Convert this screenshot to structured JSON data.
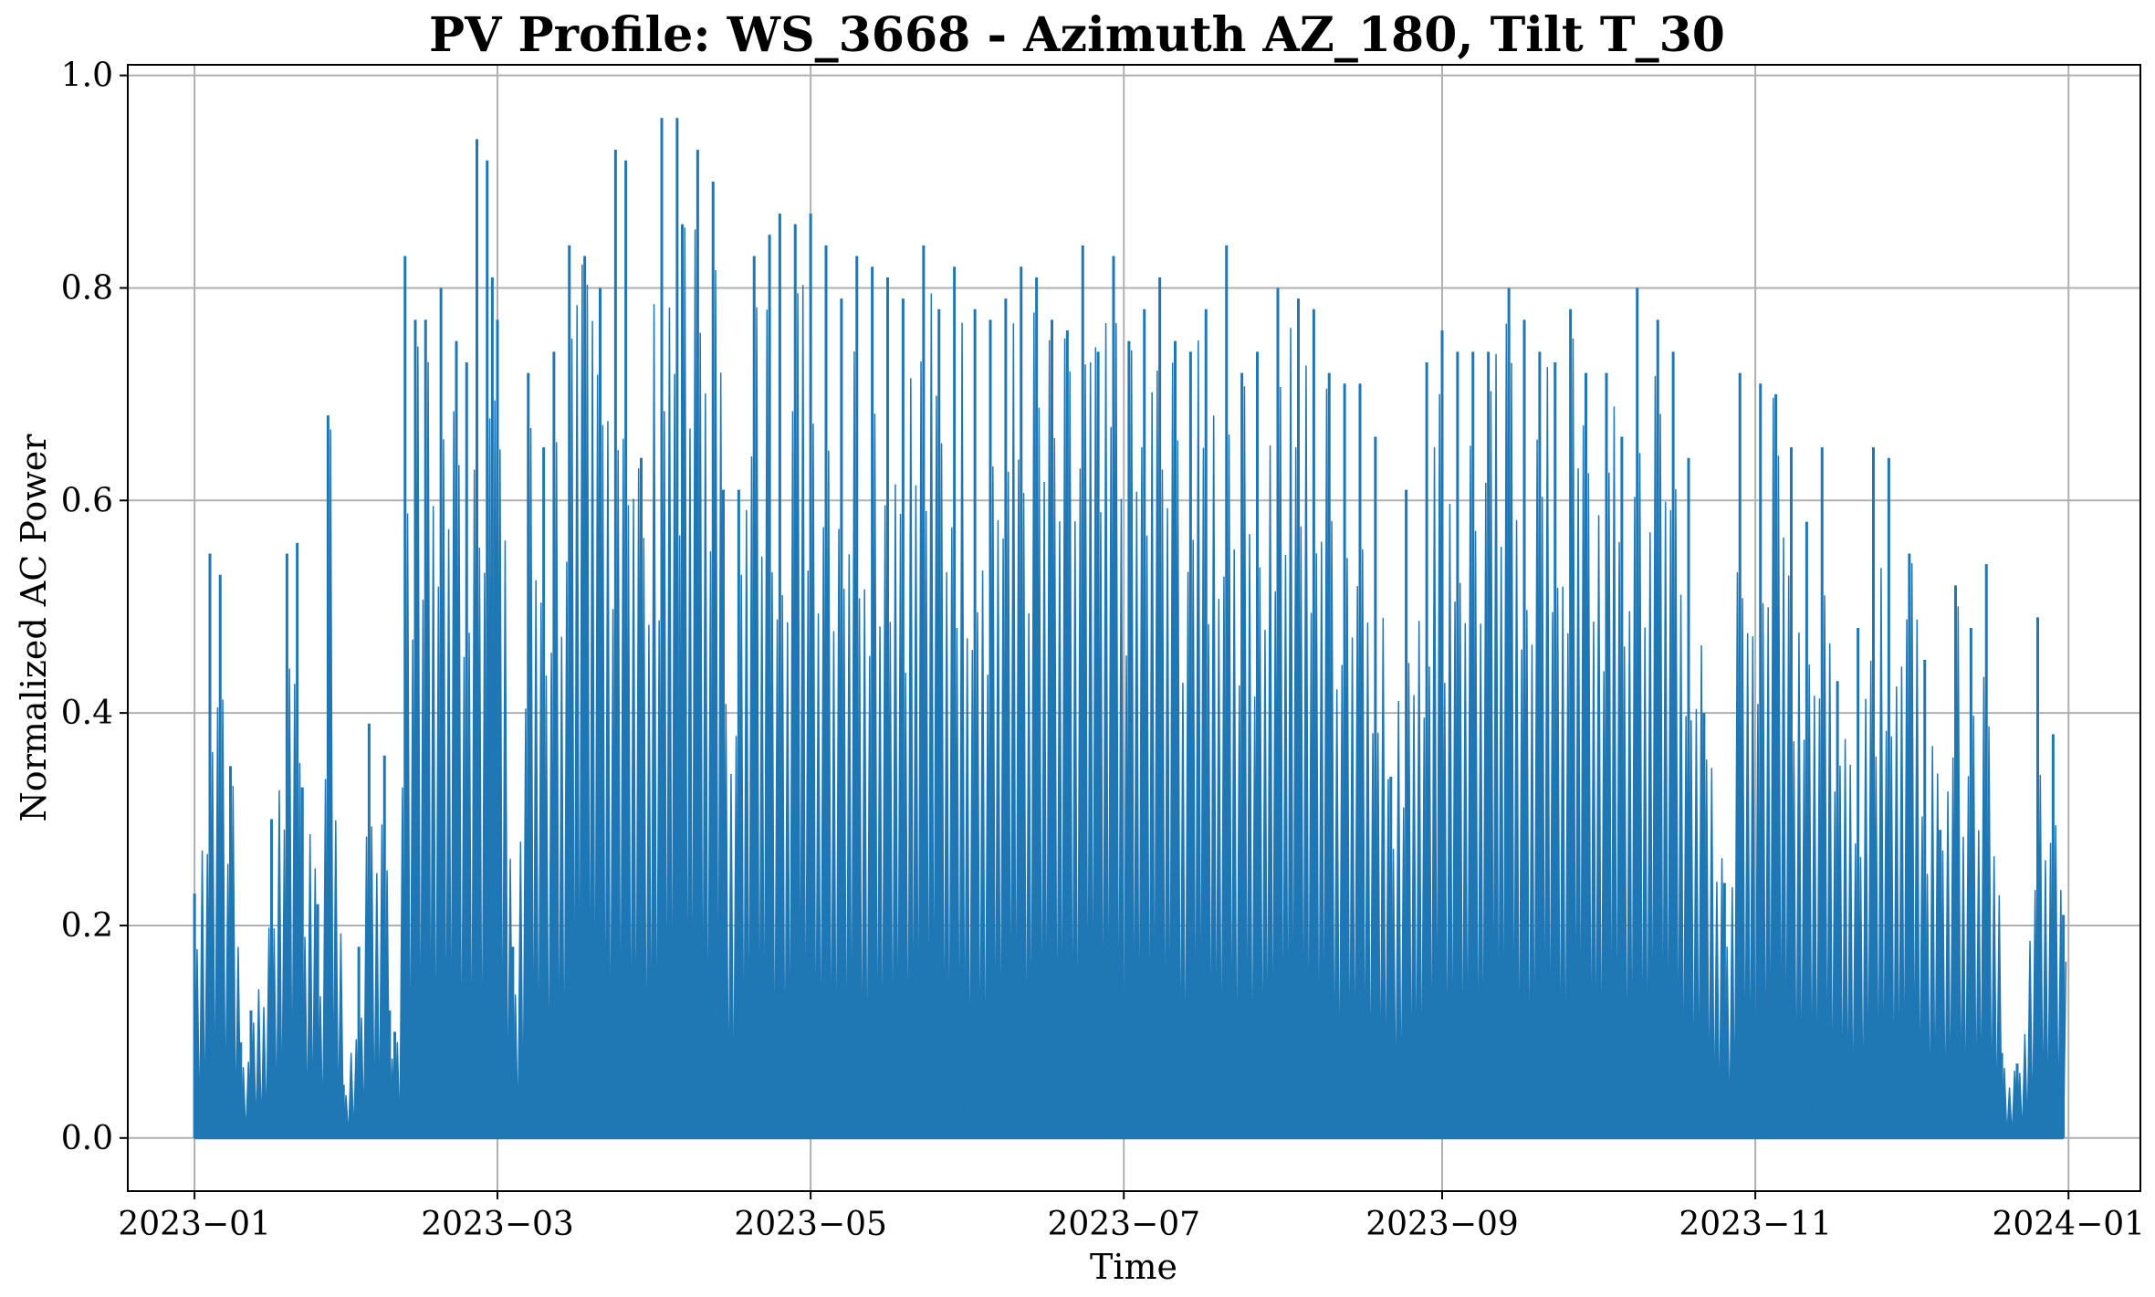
{
  "chart_data": {
    "type": "line",
    "title": "PV Profile: WS_3668 - Azimuth AZ_180, Tilt T_30",
    "xlabel": "Time",
    "ylabel": "Normalized AC Power",
    "x_range": [
      "2022-12-19",
      "2024-01-15"
    ],
    "ylim": [
      -0.05,
      1.01
    ],
    "x_ticks": [
      "2023-01",
      "2023-03",
      "2023-05",
      "2023-07",
      "2023-09",
      "2023-11",
      "2024-01"
    ],
    "y_ticks": [
      "0.0",
      "0.2",
      "0.4",
      "0.6",
      "0.8",
      "1.0"
    ],
    "y_tick_values": [
      0.0,
      0.2,
      0.4,
      0.6,
      0.8,
      1.0
    ],
    "grid": true,
    "legend": "none",
    "series": [
      {
        "color": "#1f77b4",
        "resolution": "hourly, daytime peaks shown by day",
        "daily_peak_dates": [
          "2023-01-01",
          "2023-01-04",
          "2023-01-06",
          "2023-01-08",
          "2023-01-10",
          "2023-01-12",
          "2023-01-16",
          "2023-01-19",
          "2023-01-21",
          "2023-01-22",
          "2023-01-25",
          "2023-01-27",
          "2023-01-30",
          "2023-02-02",
          "2023-02-04",
          "2023-02-07",
          "2023-02-08",
          "2023-02-09",
          "2023-02-11",
          "2023-02-13",
          "2023-02-15",
          "2023-02-18",
          "2023-02-21",
          "2023-02-23",
          "2023-02-25",
          "2023-02-27",
          "2023-02-28",
          "2023-03-01",
          "2023-03-04",
          "2023-03-07",
          "2023-03-10",
          "2023-03-12",
          "2023-03-15",
          "2023-03-18",
          "2023-03-21",
          "2023-03-24",
          "2023-03-26",
          "2023-03-29",
          "2023-04-02",
          "2023-04-05",
          "2023-04-06",
          "2023-04-09",
          "2023-04-12",
          "2023-04-14",
          "2023-04-17",
          "2023-04-20",
          "2023-04-23",
          "2023-04-25",
          "2023-04-28",
          "2023-05-01",
          "2023-05-04",
          "2023-05-07",
          "2023-05-10",
          "2023-05-13",
          "2023-05-16",
          "2023-05-19",
          "2023-05-23",
          "2023-05-26",
          "2023-05-29",
          "2023-06-02",
          "2023-06-05",
          "2023-06-08",
          "2023-06-11",
          "2023-06-14",
          "2023-06-17",
          "2023-06-20",
          "2023-06-23",
          "2023-06-26",
          "2023-06-29",
          "2023-07-02",
          "2023-07-05",
          "2023-07-08",
          "2023-07-11",
          "2023-07-14",
          "2023-07-17",
          "2023-07-21",
          "2023-07-24",
          "2023-07-27",
          "2023-07-31",
          "2023-08-04",
          "2023-08-07",
          "2023-08-10",
          "2023-08-13",
          "2023-08-16",
          "2023-08-19",
          "2023-08-22",
          "2023-08-25",
          "2023-08-29",
          "2023-09-01",
          "2023-09-04",
          "2023-09-07",
          "2023-09-10",
          "2023-09-14",
          "2023-09-17",
          "2023-09-20",
          "2023-09-23",
          "2023-09-26",
          "2023-09-29",
          "2023-10-03",
          "2023-10-06",
          "2023-10-09",
          "2023-10-13",
          "2023-10-16",
          "2023-10-19",
          "2023-10-22",
          "2023-10-26",
          "2023-10-29",
          "2023-11-02",
          "2023-11-05",
          "2023-11-08",
          "2023-11-11",
          "2023-11-14",
          "2023-11-17",
          "2023-11-21",
          "2023-11-24",
          "2023-11-27",
          "2023-12-01",
          "2023-12-04",
          "2023-12-07",
          "2023-12-10",
          "2023-12-13",
          "2023-12-16",
          "2023-12-19",
          "2023-12-22",
          "2023-12-26",
          "2023-12-29",
          "2023-12-31"
        ],
        "daily_peak_values": [
          0.23,
          0.55,
          0.53,
          0.35,
          0.09,
          0.12,
          0.3,
          0.55,
          0.56,
          0.33,
          0.22,
          0.68,
          0.05,
          0.18,
          0.39,
          0.36,
          0.12,
          0.1,
          0.83,
          0.77,
          0.77,
          0.8,
          0.75,
          0.73,
          0.94,
          0.92,
          0.81,
          0.77,
          0.18,
          0.72,
          0.65,
          0.74,
          0.84,
          0.83,
          0.8,
          0.93,
          0.92,
          0.64,
          0.96,
          0.96,
          0.86,
          0.93,
          0.9,
          0.61,
          0.61,
          0.83,
          0.85,
          0.87,
          0.86,
          0.87,
          0.84,
          0.79,
          0.83,
          0.82,
          0.81,
          0.79,
          0.84,
          0.78,
          0.82,
          0.78,
          0.77,
          0.79,
          0.82,
          0.81,
          0.77,
          0.76,
          0.84,
          0.74,
          0.83,
          0.75,
          0.78,
          0.81,
          0.75,
          0.74,
          0.78,
          0.84,
          0.72,
          0.74,
          0.8,
          0.79,
          0.78,
          0.72,
          0.71,
          0.71,
          0.66,
          0.34,
          0.61,
          0.73,
          0.76,
          0.74,
          0.74,
          0.74,
          0.8,
          0.77,
          0.74,
          0.73,
          0.78,
          0.72,
          0.72,
          0.66,
          0.8,
          0.77,
          0.74,
          0.64,
          0.4,
          0.24,
          0.72,
          0.71,
          0.7,
          0.65,
          0.58,
          0.65,
          0.43,
          0.48,
          0.65,
          0.64,
          0.55,
          0.45,
          0.29,
          0.52,
          0.48,
          0.54,
          0.08,
          0.07,
          0.49,
          0.38,
          0.21
        ]
      }
    ]
  }
}
